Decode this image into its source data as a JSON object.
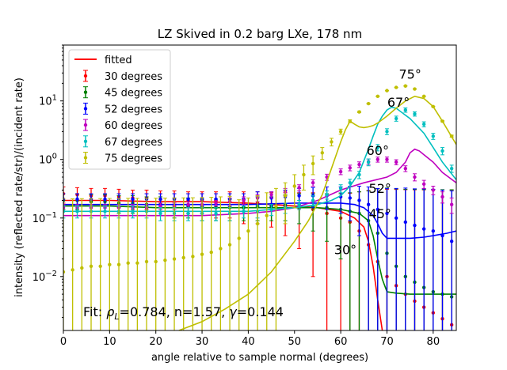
{
  "chart_data": {
    "type": "scatter",
    "title": "LZ Skived in 0.2 barg LXe, 178 nm",
    "xlabel": "angle relative to sample normal (degrees)",
    "ylabel": "intensity (reflected rate/str)/(incident rate)",
    "xlim": [
      0,
      85
    ],
    "ylim": [
      0.0012,
      90
    ],
    "yscale": "log",
    "grid": false,
    "legend_position": "upper-left",
    "x_ticks": [
      "0",
      "10",
      "20",
      "30",
      "40",
      "50",
      "60",
      "70",
      "80"
    ],
    "y_ticks": [
      {
        "value": 0.01,
        "label": "10",
        "exp": "−2"
      },
      {
        "value": 0.1,
        "label": "10",
        "exp": "−1"
      },
      {
        "value": 1,
        "label": "10",
        "exp": "0"
      },
      {
        "value": 10,
        "label": "10",
        "exp": "1"
      }
    ],
    "fit_annotation": {
      "prefix": "Fit: ",
      "rho_symbol": "ρ",
      "rho_sub": "L",
      "rest": "=0.784, n=1.57, ",
      "gamma_symbol": "γ",
      "gamma_val": "=0.144"
    },
    "fitted_legend": {
      "name": "fitted",
      "color": "#ff0000"
    },
    "series": [
      {
        "name": "30 degrees",
        "angle_label": "30°",
        "label_at": [
          61,
          0.024
        ],
        "color": "#ff0000",
        "x": [
          0,
          3,
          6,
          9,
          12,
          15,
          18,
          21,
          24,
          27,
          30,
          33,
          36,
          39,
          42,
          45,
          48,
          51,
          54,
          57,
          60,
          62,
          64,
          66,
          68,
          70,
          72,
          74,
          76,
          78,
          80,
          82,
          84
        ],
        "y": [
          0.26,
          0.25,
          0.24,
          0.24,
          0.23,
          0.22,
          0.22,
          0.21,
          0.21,
          0.2,
          0.2,
          0.19,
          0.19,
          0.18,
          0.18,
          0.17,
          0.16,
          0.15,
          0.14,
          0.12,
          0.1,
          0.085,
          0.06,
          0.035,
          0.018,
          0.01,
          0.007,
          0.005,
          0.0038,
          0.003,
          0.0024,
          0.0019,
          0.0015
        ],
        "err": [
          0.08,
          0.08,
          0.08,
          0.08,
          0.08,
          0.08,
          0.08,
          0.08,
          0.08,
          0.08,
          0.08,
          0.09,
          0.09,
          0.1,
          0.1,
          0.1,
          0.11,
          0.12,
          0.13,
          0.14,
          0.16,
          0.18,
          0.22,
          0.26,
          0.3,
          0.3,
          0.3,
          0.3,
          0.3,
          0.3,
          0.3,
          0.3,
          0.3
        ],
        "fit_x": [
          0,
          10,
          20,
          30,
          40,
          50,
          55,
          60,
          63,
          65,
          66,
          67,
          68,
          69
        ],
        "fit_y": [
          0.2,
          0.2,
          0.19,
          0.19,
          0.18,
          0.16,
          0.15,
          0.13,
          0.1,
          0.07,
          0.04,
          0.015,
          0.004,
          0.0012
        ]
      },
      {
        "name": "45 degrees",
        "angle_label": "45°",
        "label_at": [
          68.5,
          0.1
        ],
        "color": "#008000",
        "x": [
          0,
          3,
          6,
          9,
          12,
          15,
          18,
          21,
          24,
          27,
          30,
          33,
          36,
          39,
          42,
          45,
          48,
          51,
          54,
          57,
          60,
          62,
          64,
          66,
          68,
          70,
          72,
          74,
          76,
          78,
          80,
          82,
          84
        ],
        "y": [
          0.2,
          0.2,
          0.19,
          0.19,
          0.18,
          0.18,
          0.17,
          0.17,
          0.16,
          0.16,
          0.15,
          0.15,
          0.15,
          0.15,
          0.16,
          0.16,
          0.17,
          0.17,
          0.16,
          0.15,
          0.14,
          0.13,
          0.12,
          0.09,
          0.055,
          0.025,
          0.015,
          0.01,
          0.008,
          0.0065,
          0.0055,
          0.005,
          0.0045
        ],
        "err": [
          0.06,
          0.06,
          0.06,
          0.06,
          0.06,
          0.06,
          0.06,
          0.06,
          0.06,
          0.06,
          0.06,
          0.06,
          0.06,
          0.06,
          0.07,
          0.07,
          0.08,
          0.09,
          0.1,
          0.11,
          0.12,
          0.14,
          0.16,
          0.2,
          0.26,
          0.3,
          0.3,
          0.3,
          0.3,
          0.3,
          0.3,
          0.3,
          0.3
        ],
        "fit_x": [
          0,
          10,
          20,
          30,
          40,
          50,
          55,
          60,
          64,
          66,
          67,
          68,
          69,
          70,
          72,
          75,
          80,
          85
        ],
        "fit_y": [
          0.16,
          0.16,
          0.15,
          0.15,
          0.15,
          0.15,
          0.15,
          0.14,
          0.12,
          0.09,
          0.05,
          0.02,
          0.009,
          0.0055,
          0.0052,
          0.005,
          0.005,
          0.005
        ]
      },
      {
        "name": "52 degrees",
        "angle_label": "52°",
        "label_at": [
          68.5,
          0.27
        ],
        "color": "#0000ff",
        "x": [
          0,
          3,
          6,
          9,
          12,
          15,
          18,
          21,
          24,
          27,
          30,
          33,
          36,
          39,
          42,
          45,
          48,
          51,
          54,
          57,
          60,
          62,
          64,
          66,
          68,
          70,
          72,
          74,
          76,
          78,
          80,
          82,
          84
        ],
        "y": [
          0.21,
          0.21,
          0.21,
          0.21,
          0.21,
          0.21,
          0.21,
          0.21,
          0.21,
          0.21,
          0.21,
          0.21,
          0.21,
          0.21,
          0.22,
          0.22,
          0.23,
          0.24,
          0.24,
          0.24,
          0.23,
          0.22,
          0.2,
          0.17,
          0.14,
          0.12,
          0.1,
          0.085,
          0.075,
          0.065,
          0.06,
          0.05,
          0.04
        ],
        "err": [
          0.05,
          0.05,
          0.05,
          0.05,
          0.05,
          0.05,
          0.05,
          0.05,
          0.05,
          0.05,
          0.05,
          0.05,
          0.05,
          0.05,
          0.06,
          0.06,
          0.07,
          0.08,
          0.09,
          0.1,
          0.11,
          0.13,
          0.15,
          0.17,
          0.18,
          0.2,
          0.22,
          0.24,
          0.24,
          0.25,
          0.25,
          0.25,
          0.25
        ],
        "fit_x": [
          0,
          10,
          20,
          30,
          40,
          50,
          55,
          60,
          63,
          65,
          67,
          68,
          69,
          70,
          72,
          75,
          78,
          80,
          83,
          85
        ],
        "fit_y": [
          0.17,
          0.17,
          0.17,
          0.17,
          0.17,
          0.18,
          0.18,
          0.18,
          0.17,
          0.15,
          0.11,
          0.08,
          0.055,
          0.045,
          0.045,
          0.045,
          0.047,
          0.05,
          0.055,
          0.06
        ]
      },
      {
        "name": "60 degrees",
        "angle_label": "60°",
        "label_at": [
          68,
          1.2
        ],
        "color": "#bf00bf",
        "x": [
          0,
          3,
          6,
          9,
          12,
          15,
          18,
          21,
          24,
          27,
          30,
          33,
          36,
          39,
          42,
          45,
          48,
          51,
          54,
          57,
          60,
          62,
          64,
          66,
          68,
          70,
          72,
          74,
          76,
          78,
          80,
          82,
          84
        ],
        "y": [
          0.15,
          0.15,
          0.15,
          0.15,
          0.15,
          0.15,
          0.15,
          0.16,
          0.16,
          0.17,
          0.17,
          0.18,
          0.19,
          0.2,
          0.22,
          0.25,
          0.28,
          0.33,
          0.4,
          0.5,
          0.62,
          0.72,
          0.82,
          0.92,
          1.0,
          1.0,
          0.9,
          0.7,
          0.5,
          0.38,
          0.3,
          0.23,
          0.17
        ],
        "err": [
          0.02,
          0.02,
          0.02,
          0.02,
          0.02,
          0.02,
          0.02,
          0.02,
          0.02,
          0.02,
          0.02,
          0.02,
          0.03,
          0.03,
          0.03,
          0.03,
          0.04,
          0.04,
          0.05,
          0.06,
          0.07,
          0.08,
          0.09,
          0.1,
          0.1,
          0.1,
          0.09,
          0.08,
          0.07,
          0.06,
          0.05,
          0.05,
          0.05
        ],
        "fit_x": [
          0,
          10,
          20,
          30,
          40,
          45,
          50,
          55,
          60,
          65,
          70,
          72,
          74,
          75,
          76,
          77,
          78,
          80,
          82,
          85
        ],
        "fit_y": [
          0.11,
          0.11,
          0.11,
          0.11,
          0.12,
          0.13,
          0.15,
          0.2,
          0.3,
          0.4,
          0.5,
          0.6,
          0.9,
          1.3,
          1.5,
          1.4,
          1.2,
          0.9,
          0.6,
          0.4
        ]
      },
      {
        "name": "67 degrees",
        "angle_label": "67°",
        "label_at": [
          72.5,
          8
        ],
        "color": "#00bfbf",
        "x": [
          0,
          3,
          6,
          9,
          12,
          15,
          18,
          21,
          24,
          27,
          30,
          33,
          36,
          39,
          42,
          45,
          48,
          51,
          54,
          57,
          60,
          62,
          64,
          66,
          68,
          70,
          72,
          74,
          76,
          78,
          80,
          82,
          84
        ],
        "y": [
          0.13,
          0.13,
          0.13,
          0.13,
          0.13,
          0.13,
          0.13,
          0.12,
          0.12,
          0.12,
          0.12,
          0.12,
          0.12,
          0.13,
          0.13,
          0.14,
          0.15,
          0.17,
          0.2,
          0.25,
          0.32,
          0.4,
          0.55,
          0.9,
          1.6,
          3.0,
          5.0,
          7.0,
          6.0,
          4.0,
          2.5,
          1.4,
          0.7
        ],
        "err": [
          0.03,
          0.03,
          0.03,
          0.03,
          0.03,
          0.03,
          0.03,
          0.03,
          0.03,
          0.03,
          0.03,
          0.03,
          0.03,
          0.03,
          0.03,
          0.03,
          0.03,
          0.03,
          0.04,
          0.04,
          0.05,
          0.06,
          0.08,
          0.12,
          0.2,
          0.35,
          0.5,
          0.6,
          0.5,
          0.4,
          0.3,
          0.2,
          0.1
        ],
        "fit_x": [
          0,
          10,
          20,
          30,
          40,
          45,
          50,
          55,
          58,
          60,
          62,
          64,
          66,
          67,
          68,
          69,
          70,
          71,
          72,
          75,
          78,
          80,
          82,
          85
        ],
        "fit_y": [
          0.13,
          0.13,
          0.13,
          0.13,
          0.13,
          0.14,
          0.15,
          0.17,
          0.2,
          0.24,
          0.35,
          0.6,
          1.5,
          2.5,
          4.0,
          5.5,
          7.0,
          7.8,
          7.5,
          5.0,
          2.8,
          1.6,
          0.9,
          0.45
        ]
      },
      {
        "name": "75 degrees",
        "angle_label": "75°",
        "label_at": [
          75,
          24
        ],
        "color": "#bfbf00",
        "x": [
          0,
          2,
          4,
          6,
          8,
          10,
          12,
          14,
          16,
          18,
          20,
          22,
          24,
          26,
          28,
          30,
          32,
          34,
          36,
          38,
          40,
          42,
          44,
          46,
          48,
          50,
          52,
          54,
          56,
          58,
          60,
          62,
          64,
          66,
          68,
          70,
          72,
          74,
          76,
          78,
          80,
          82,
          84
        ],
        "y": [
          0.012,
          0.013,
          0.014,
          0.015,
          0.015,
          0.016,
          0.016,
          0.017,
          0.017,
          0.018,
          0.018,
          0.019,
          0.02,
          0.021,
          0.022,
          0.024,
          0.026,
          0.03,
          0.035,
          0.045,
          0.06,
          0.08,
          0.11,
          0.16,
          0.24,
          0.35,
          0.55,
          0.85,
          1.3,
          2.0,
          3.0,
          4.5,
          6.5,
          9.0,
          12.0,
          15.0,
          17.0,
          18.0,
          16.0,
          12.0,
          8.0,
          4.5,
          2.5
        ],
        "err": [
          0.2,
          0.2,
          0.2,
          0.2,
          0.2,
          0.2,
          0.2,
          0.2,
          0.2,
          0.2,
          0.2,
          0.2,
          0.2,
          0.2,
          0.2,
          0.2,
          0.2,
          0.2,
          0.2,
          0.16,
          0.16,
          0.16,
          0.16,
          0.16,
          0.16,
          0.2,
          0.25,
          0.3,
          0.3,
          0.3,
          0.3,
          0.25,
          0.2,
          0.15,
          0.12,
          0.1,
          0.1,
          0.1,
          0.1,
          0.1,
          0.1,
          0.1,
          0.1
        ],
        "fit_x": [
          25,
          30,
          35,
          40,
          45,
          50,
          53,
          56,
          58,
          60,
          61,
          62,
          63,
          64,
          65,
          66,
          67,
          68,
          70,
          72,
          74,
          76,
          78,
          80,
          82,
          85
        ],
        "fit_y": [
          0.0012,
          0.0017,
          0.0028,
          0.005,
          0.012,
          0.04,
          0.09,
          0.25,
          0.7,
          2.0,
          3.2,
          4.5,
          4.0,
          3.6,
          3.5,
          3.6,
          3.8,
          4.2,
          5.5,
          7.5,
          10.0,
          12.0,
          11.0,
          8.0,
          4.5,
          1.8
        ]
      }
    ]
  }
}
